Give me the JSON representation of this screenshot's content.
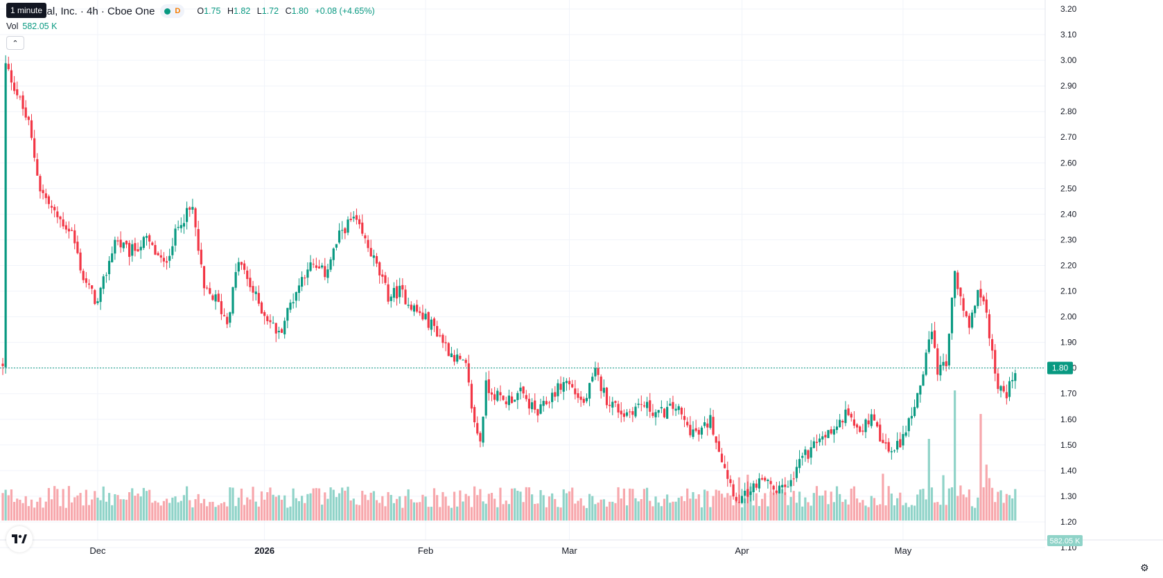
{
  "legend": {
    "title": "ital, Inc. · 4h · Cboe One",
    "interval_badge": "D",
    "open_label": "O",
    "open": "1.75",
    "high_label": "H",
    "high": "1.82",
    "low_label": "L",
    "low": "1.72",
    "close_label": "C",
    "close": "1.80",
    "change": "+0.08 (+4.65%)"
  },
  "tooltip": "1 minute",
  "volume": {
    "label": "Vol",
    "value": "582.05 K"
  },
  "colors": {
    "up": "#089981",
    "down": "#f23645",
    "up_vol": "#8fd3c8",
    "down_vol": "#f7a7ac",
    "grid": "#f0f3fa"
  },
  "icons": {
    "collapse": "chevron-up-icon",
    "logo": "tradingview-logo",
    "settings": "gear-icon"
  },
  "chart_data": {
    "type": "candlestick",
    "ylim": [
      1.07,
      3.23
    ],
    "y_ticks": [
      "3.20",
      "3.10",
      "3.00",
      "2.90",
      "2.80",
      "2.70",
      "2.60",
      "2.50",
      "2.40",
      "2.30",
      "2.20",
      "2.10",
      "2.00",
      "1.90",
      "1.80",
      "1.70",
      "1.60",
      "1.50",
      "1.40",
      "1.30",
      "1.20",
      "1.10"
    ],
    "x_labels": [
      {
        "label": "Dec",
        "bold": false
      },
      {
        "label": "2026",
        "bold": true
      },
      {
        "label": "Feb",
        "bold": false
      },
      {
        "label": "Mar",
        "bold": false
      },
      {
        "label": "Apr",
        "bold": false
      },
      {
        "label": "May",
        "bold": false
      }
    ],
    "last_price": "1.80",
    "last_volume": "582.05 K",
    "close_path": [
      [
        1,
        2.98
      ],
      [
        4,
        2.9
      ],
      [
        9,
        2.75
      ],
      [
        13,
        2.5
      ],
      [
        18,
        2.4
      ],
      [
        24,
        2.33
      ],
      [
        28,
        2.15
      ],
      [
        33,
        2.05
      ],
      [
        39,
        2.3
      ],
      [
        44,
        2.25
      ],
      [
        50,
        2.3
      ],
      [
        56,
        2.2
      ],
      [
        62,
        2.38
      ],
      [
        66,
        2.42
      ],
      [
        70,
        2.1
      ],
      [
        74,
        2.07
      ],
      [
        78,
        1.98
      ],
      [
        82,
        2.22
      ],
      [
        86,
        2.12
      ],
      [
        90,
        2.03
      ],
      [
        96,
        1.93
      ],
      [
        100,
        2.05
      ],
      [
        106,
        2.2
      ],
      [
        112,
        2.17
      ],
      [
        118,
        2.34
      ],
      [
        122,
        2.38
      ],
      [
        128,
        2.25
      ],
      [
        134,
        2.08
      ],
      [
        138,
        2.1
      ],
      [
        144,
        2.02
      ],
      [
        150,
        1.96
      ],
      [
        155,
        1.87
      ],
      [
        161,
        1.8
      ],
      [
        164,
        1.58
      ],
      [
        166,
        1.52
      ],
      [
        168,
        1.73
      ],
      [
        174,
        1.67
      ],
      [
        180,
        1.7
      ],
      [
        186,
        1.62
      ],
      [
        192,
        1.71
      ],
      [
        196,
        1.75
      ],
      [
        202,
        1.66
      ],
      [
        206,
        1.78
      ],
      [
        210,
        1.68
      ],
      [
        216,
        1.62
      ],
      [
        222,
        1.66
      ],
      [
        228,
        1.62
      ],
      [
        234,
        1.65
      ],
      [
        238,
        1.57
      ],
      [
        242,
        1.54
      ],
      [
        246,
        1.6
      ],
      [
        250,
        1.45
      ],
      [
        253,
        1.35
      ],
      [
        256,
        1.27
      ],
      [
        260,
        1.33
      ],
      [
        264,
        1.37
      ],
      [
        268,
        1.31
      ],
      [
        274,
        1.35
      ],
      [
        278,
        1.45
      ],
      [
        282,
        1.49
      ],
      [
        286,
        1.54
      ],
      [
        290,
        1.57
      ],
      [
        294,
        1.63
      ],
      [
        298,
        1.56
      ],
      [
        302,
        1.6
      ],
      [
        306,
        1.5
      ],
      [
        310,
        1.47
      ],
      [
        314,
        1.56
      ],
      [
        318,
        1.68
      ],
      [
        321,
        1.86
      ],
      [
        323,
        1.93
      ],
      [
        325,
        1.78
      ],
      [
        328,
        1.83
      ],
      [
        331,
        2.17
      ],
      [
        333,
        2.06
      ],
      [
        336,
        1.97
      ],
      [
        339,
        2.1
      ],
      [
        341,
        2.07
      ],
      [
        343,
        1.94
      ],
      [
        346,
        1.72
      ],
      [
        349,
        1.7
      ],
      [
        352,
        1.8
      ]
    ],
    "close_path_x_unit": "bar index (4h bars)",
    "bar_count": 353
  }
}
